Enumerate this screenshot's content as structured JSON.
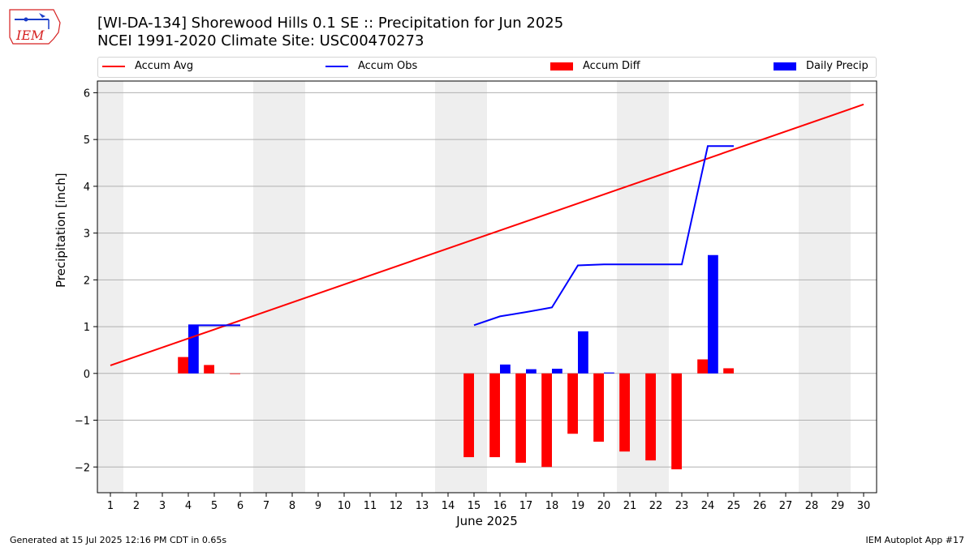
{
  "header": {
    "title_line1": "[WI-DA-134] Shorewood Hills 0.1 SE :: Precipitation for Jun 2025",
    "title_line2": "NCEI 1991-2020 Climate Site: USC00470273"
  },
  "logo": {
    "text": "IEM"
  },
  "legend": {
    "items": [
      {
        "label": "Accum Avg",
        "kind": "line",
        "color": "#ff0000"
      },
      {
        "label": "Accum Obs",
        "kind": "line",
        "color": "#0000ff"
      },
      {
        "label": "Accum Diff",
        "kind": "bar",
        "color": "#ff0000"
      },
      {
        "label": "Daily Precip",
        "kind": "bar",
        "color": "#0000ff"
      }
    ]
  },
  "footer": {
    "left": "Generated at 15 Jul 2025 12:16 PM CDT in 0.65s",
    "right": "IEM Autoplot App #17"
  },
  "chart_data": {
    "type": "bar",
    "title": "[WI-DA-134] Shorewood Hills 0.1 SE :: Precipitation for Jun 2025",
    "subtitle": "NCEI 1991-2020 Climate Site: USC00470273",
    "xlabel": "June 2025",
    "ylabel": "Precipitation [inch]",
    "xlim": [
      0.5,
      30.5
    ],
    "ylim": [
      -2.55,
      6.25
    ],
    "yticks": [
      -2,
      -1,
      0,
      1,
      2,
      3,
      4,
      5,
      6
    ],
    "xticks": [
      1,
      2,
      3,
      4,
      5,
      6,
      7,
      8,
      9,
      10,
      11,
      12,
      13,
      14,
      15,
      16,
      17,
      18,
      19,
      20,
      21,
      22,
      23,
      24,
      25,
      26,
      27,
      28,
      29,
      30
    ],
    "grid": "y",
    "legend_placement": "top",
    "weekend_shading": [
      [
        0.5,
        1.5
      ],
      [
        6.5,
        8.5
      ],
      [
        13.5,
        15.5
      ],
      [
        20.5,
        22.5
      ],
      [
        27.5,
        29.5
      ]
    ],
    "series": [
      {
        "name": "Accum Avg",
        "kind": "line",
        "color": "#ff0000",
        "x": [
          1,
          30
        ],
        "values": [
          0.17,
          5.75
        ]
      },
      {
        "name": "Accum Obs",
        "kind": "line",
        "color": "#0000ff",
        "segments": [
          {
            "x": [
              4,
              5,
              6
            ],
            "values": [
              1.03,
              1.03,
              1.03
            ]
          },
          {
            "x": [
              15,
              16,
              17,
              18,
              19,
              20,
              21,
              22,
              23,
              24,
              25
            ],
            "values": [
              1.03,
              1.22,
              1.31,
              1.41,
              2.31,
              2.33,
              2.33,
              2.33,
              2.33,
              4.86,
              4.86
            ]
          }
        ]
      },
      {
        "name": "Accum Diff",
        "kind": "bar",
        "color": "#ff0000",
        "x": [
          4,
          5,
          6,
          15,
          16,
          17,
          18,
          19,
          20,
          21,
          22,
          23,
          24,
          25
        ],
        "values": [
          0.35,
          0.18,
          -0.01,
          -1.79,
          -1.79,
          -1.91,
          -2.0,
          -1.29,
          -1.46,
          -1.67,
          -1.86,
          -2.05,
          0.3,
          0.11
        ]
      },
      {
        "name": "Daily Precip",
        "kind": "bar",
        "color": "#0000ff",
        "x": [
          4,
          16,
          17,
          18,
          19,
          20,
          24
        ],
        "values": [
          1.03,
          0.19,
          0.09,
          0.1,
          0.9,
          0.02,
          2.53
        ]
      }
    ]
  }
}
